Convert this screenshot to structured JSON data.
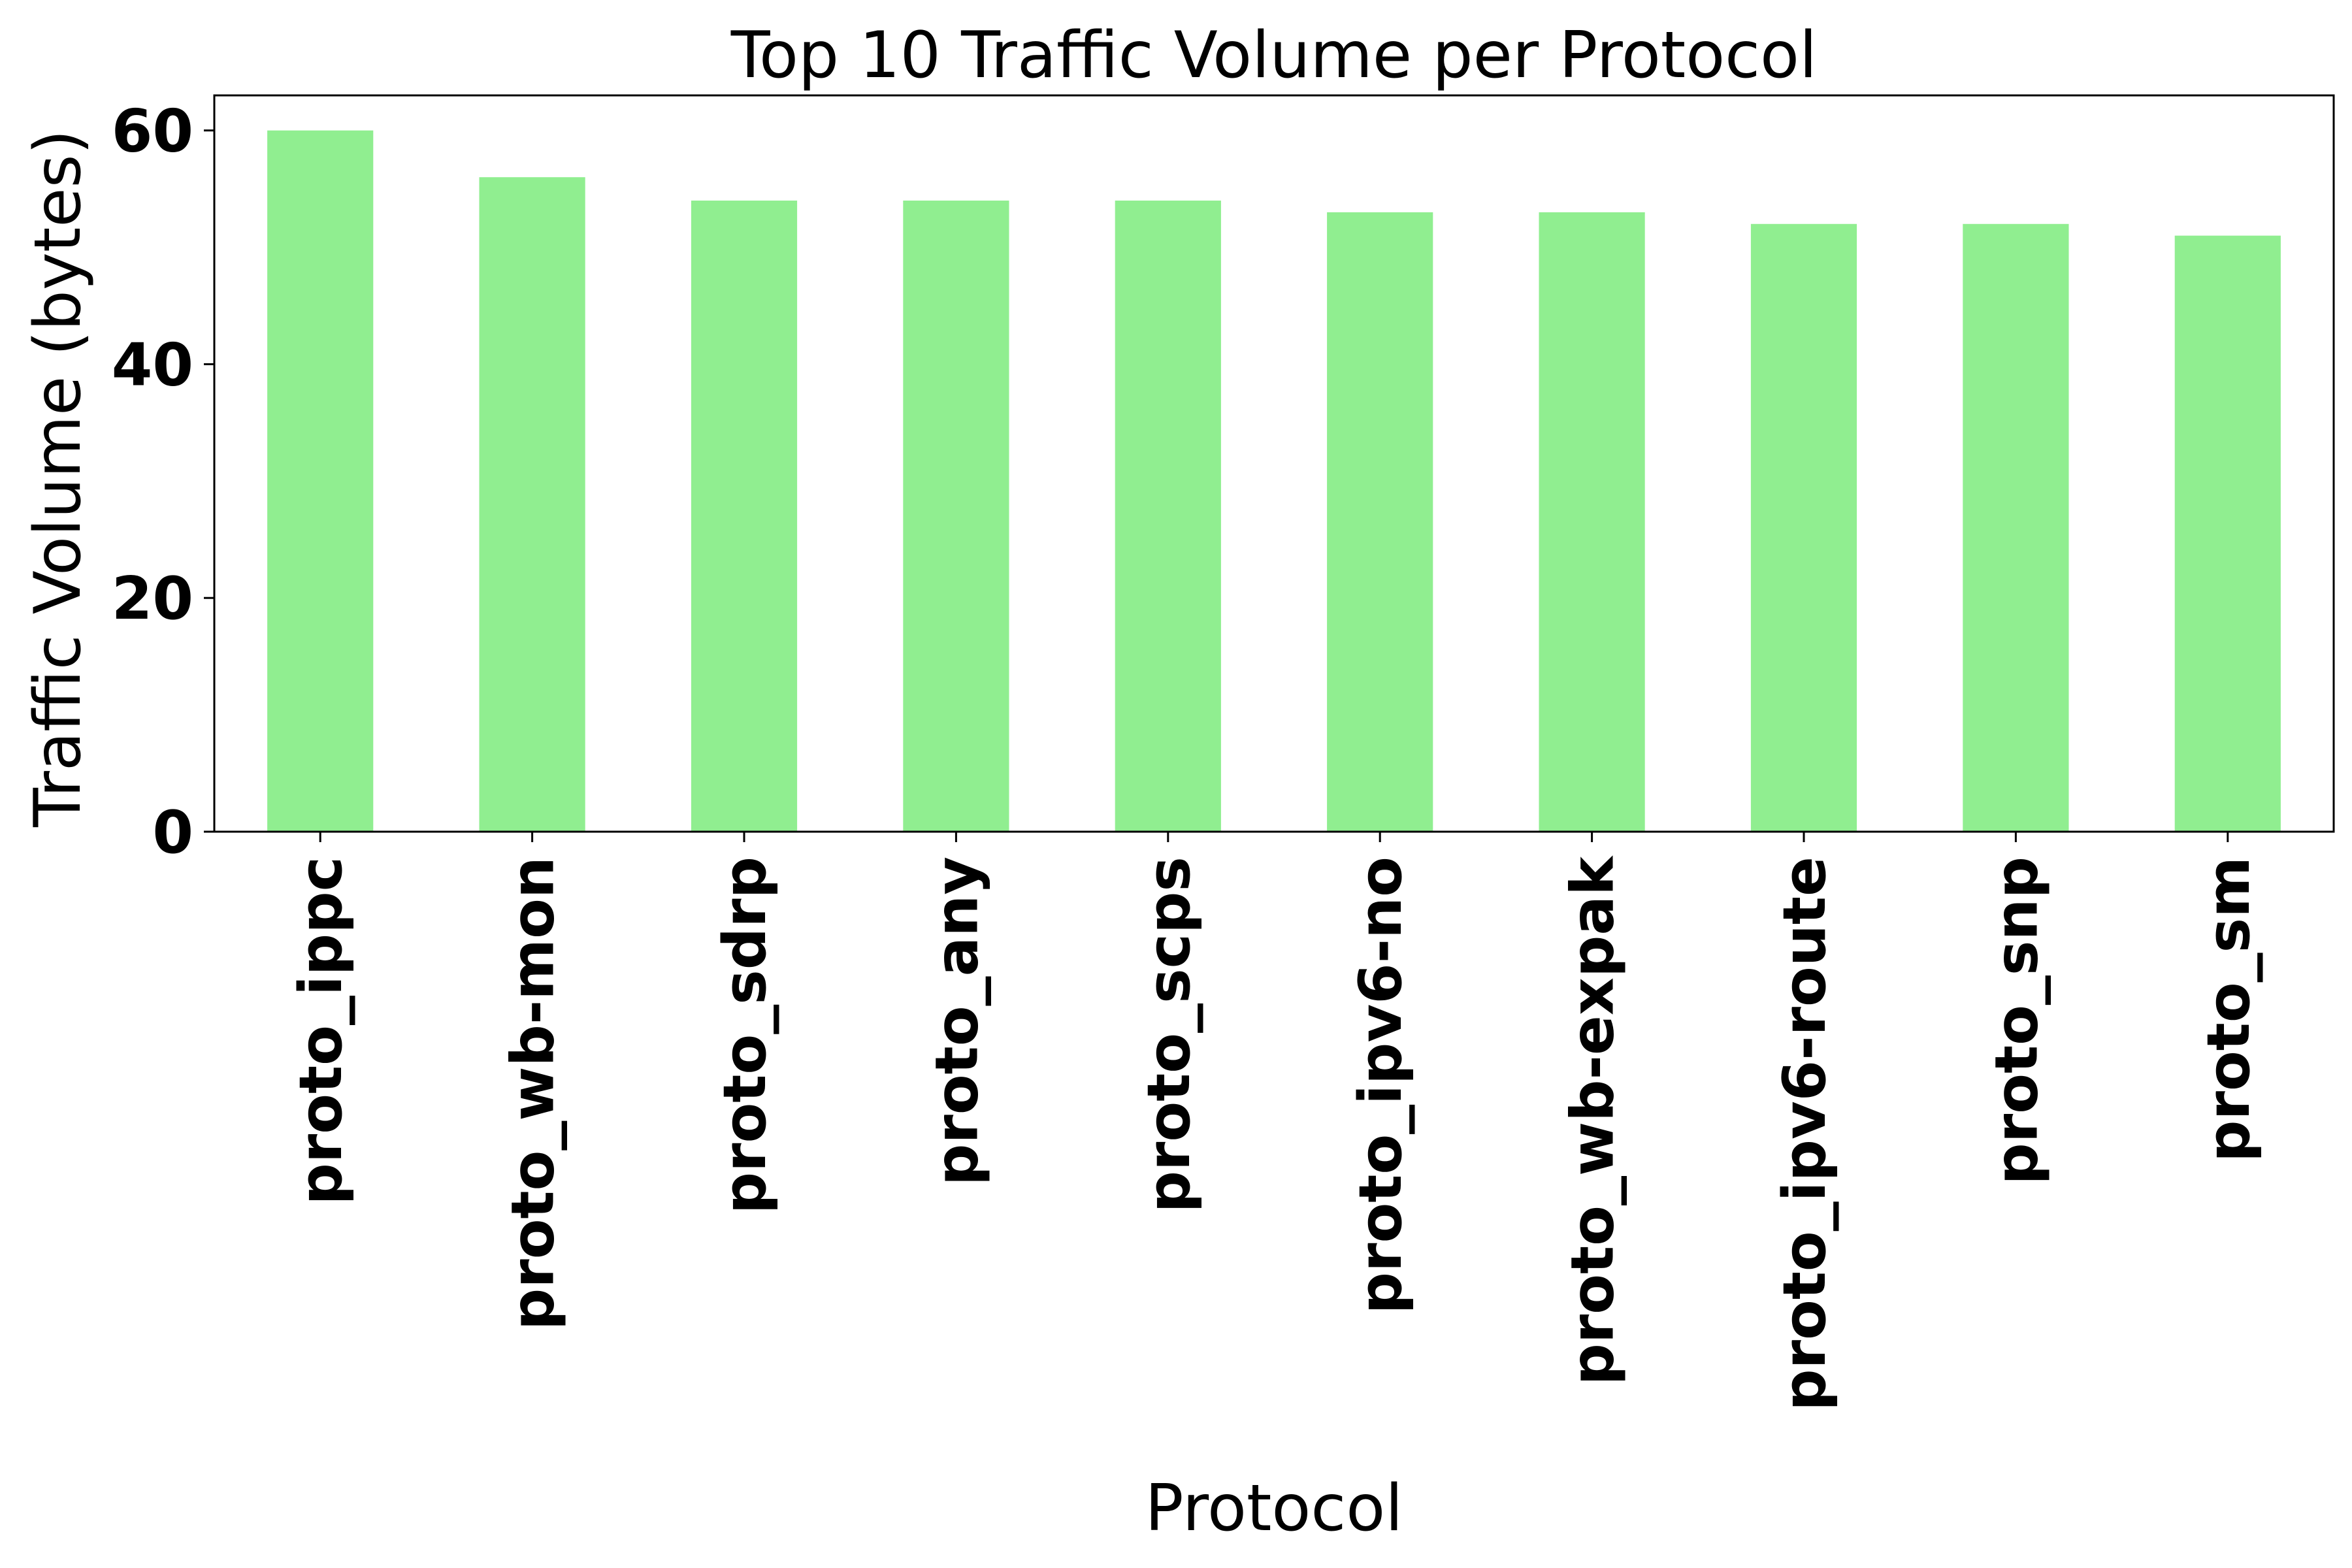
{
  "chart_data": {
    "type": "bar",
    "title": "Top 10 Traffic Volume per Protocol",
    "xlabel": "Protocol",
    "ylabel": "Traffic Volume (bytes)",
    "categories": [
      "proto_ippc",
      "proto_wb-mon",
      "proto_sdrp",
      "proto_any",
      "proto_scps",
      "proto_ipv6-no",
      "proto_wb-expak",
      "proto_ipv6-route",
      "proto_snp",
      "proto_sm"
    ],
    "values": [
      60,
      56,
      54,
      54,
      54,
      53,
      53,
      52,
      52,
      51
    ],
    "ylim": [
      0,
      63
    ],
    "yticks": [
      0,
      20,
      40,
      60
    ],
    "grid": false,
    "legend": "none",
    "bar_color": "#90ee90"
  }
}
